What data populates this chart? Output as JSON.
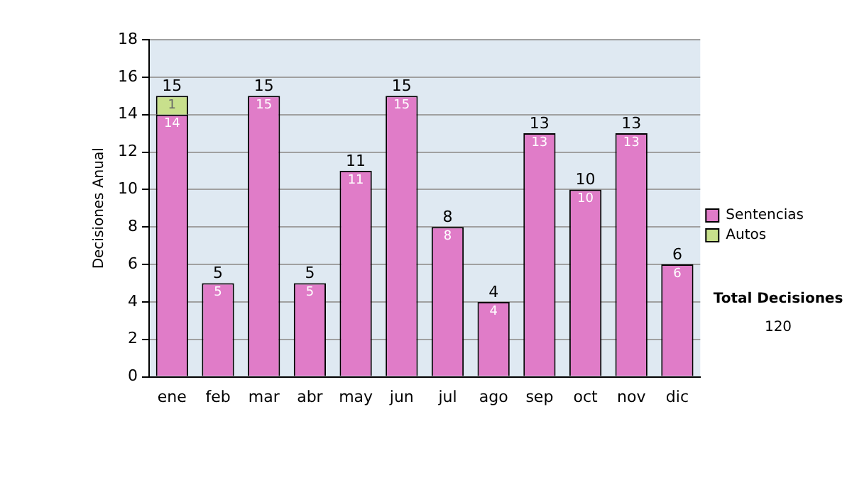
{
  "chart_data": {
    "type": "bar",
    "stacked": true,
    "ylabel": "Decisiones Anual",
    "categories": [
      "ene",
      "feb",
      "mar",
      "abr",
      "may",
      "jun",
      "jul",
      "ago",
      "sep",
      "oct",
      "nov",
      "dic"
    ],
    "series": [
      {
        "name": "Sentencias",
        "color": "#e07cc8",
        "values": [
          14,
          5,
          15,
          5,
          11,
          15,
          8,
          4,
          13,
          10,
          13,
          6
        ],
        "value_labels": [
          "14",
          "5",
          "15",
          "5",
          "11",
          "15",
          "8",
          "4",
          "13",
          "10",
          "13",
          "6"
        ]
      },
      {
        "name": "Autos",
        "color": "#c8e08c",
        "values": [
          1,
          0,
          0,
          0,
          0,
          0,
          0,
          0,
          0,
          0,
          0,
          0
        ],
        "value_labels": [
          "1",
          null,
          null,
          null,
          null,
          null,
          null,
          null,
          null,
          null,
          null,
          null
        ]
      }
    ],
    "totals": [
      "15",
      "5",
      "15",
      "5",
      "11",
      "15",
      "8",
      "4",
      "13",
      "10",
      "13",
      "6"
    ],
    "ylim": [
      0,
      18
    ],
    "yticks": [
      0,
      2,
      4,
      6,
      8,
      10,
      12,
      14,
      16,
      18
    ],
    "grid": "y",
    "legend": "right",
    "annotations": [
      "Total Decisiones",
      "120"
    ]
  }
}
